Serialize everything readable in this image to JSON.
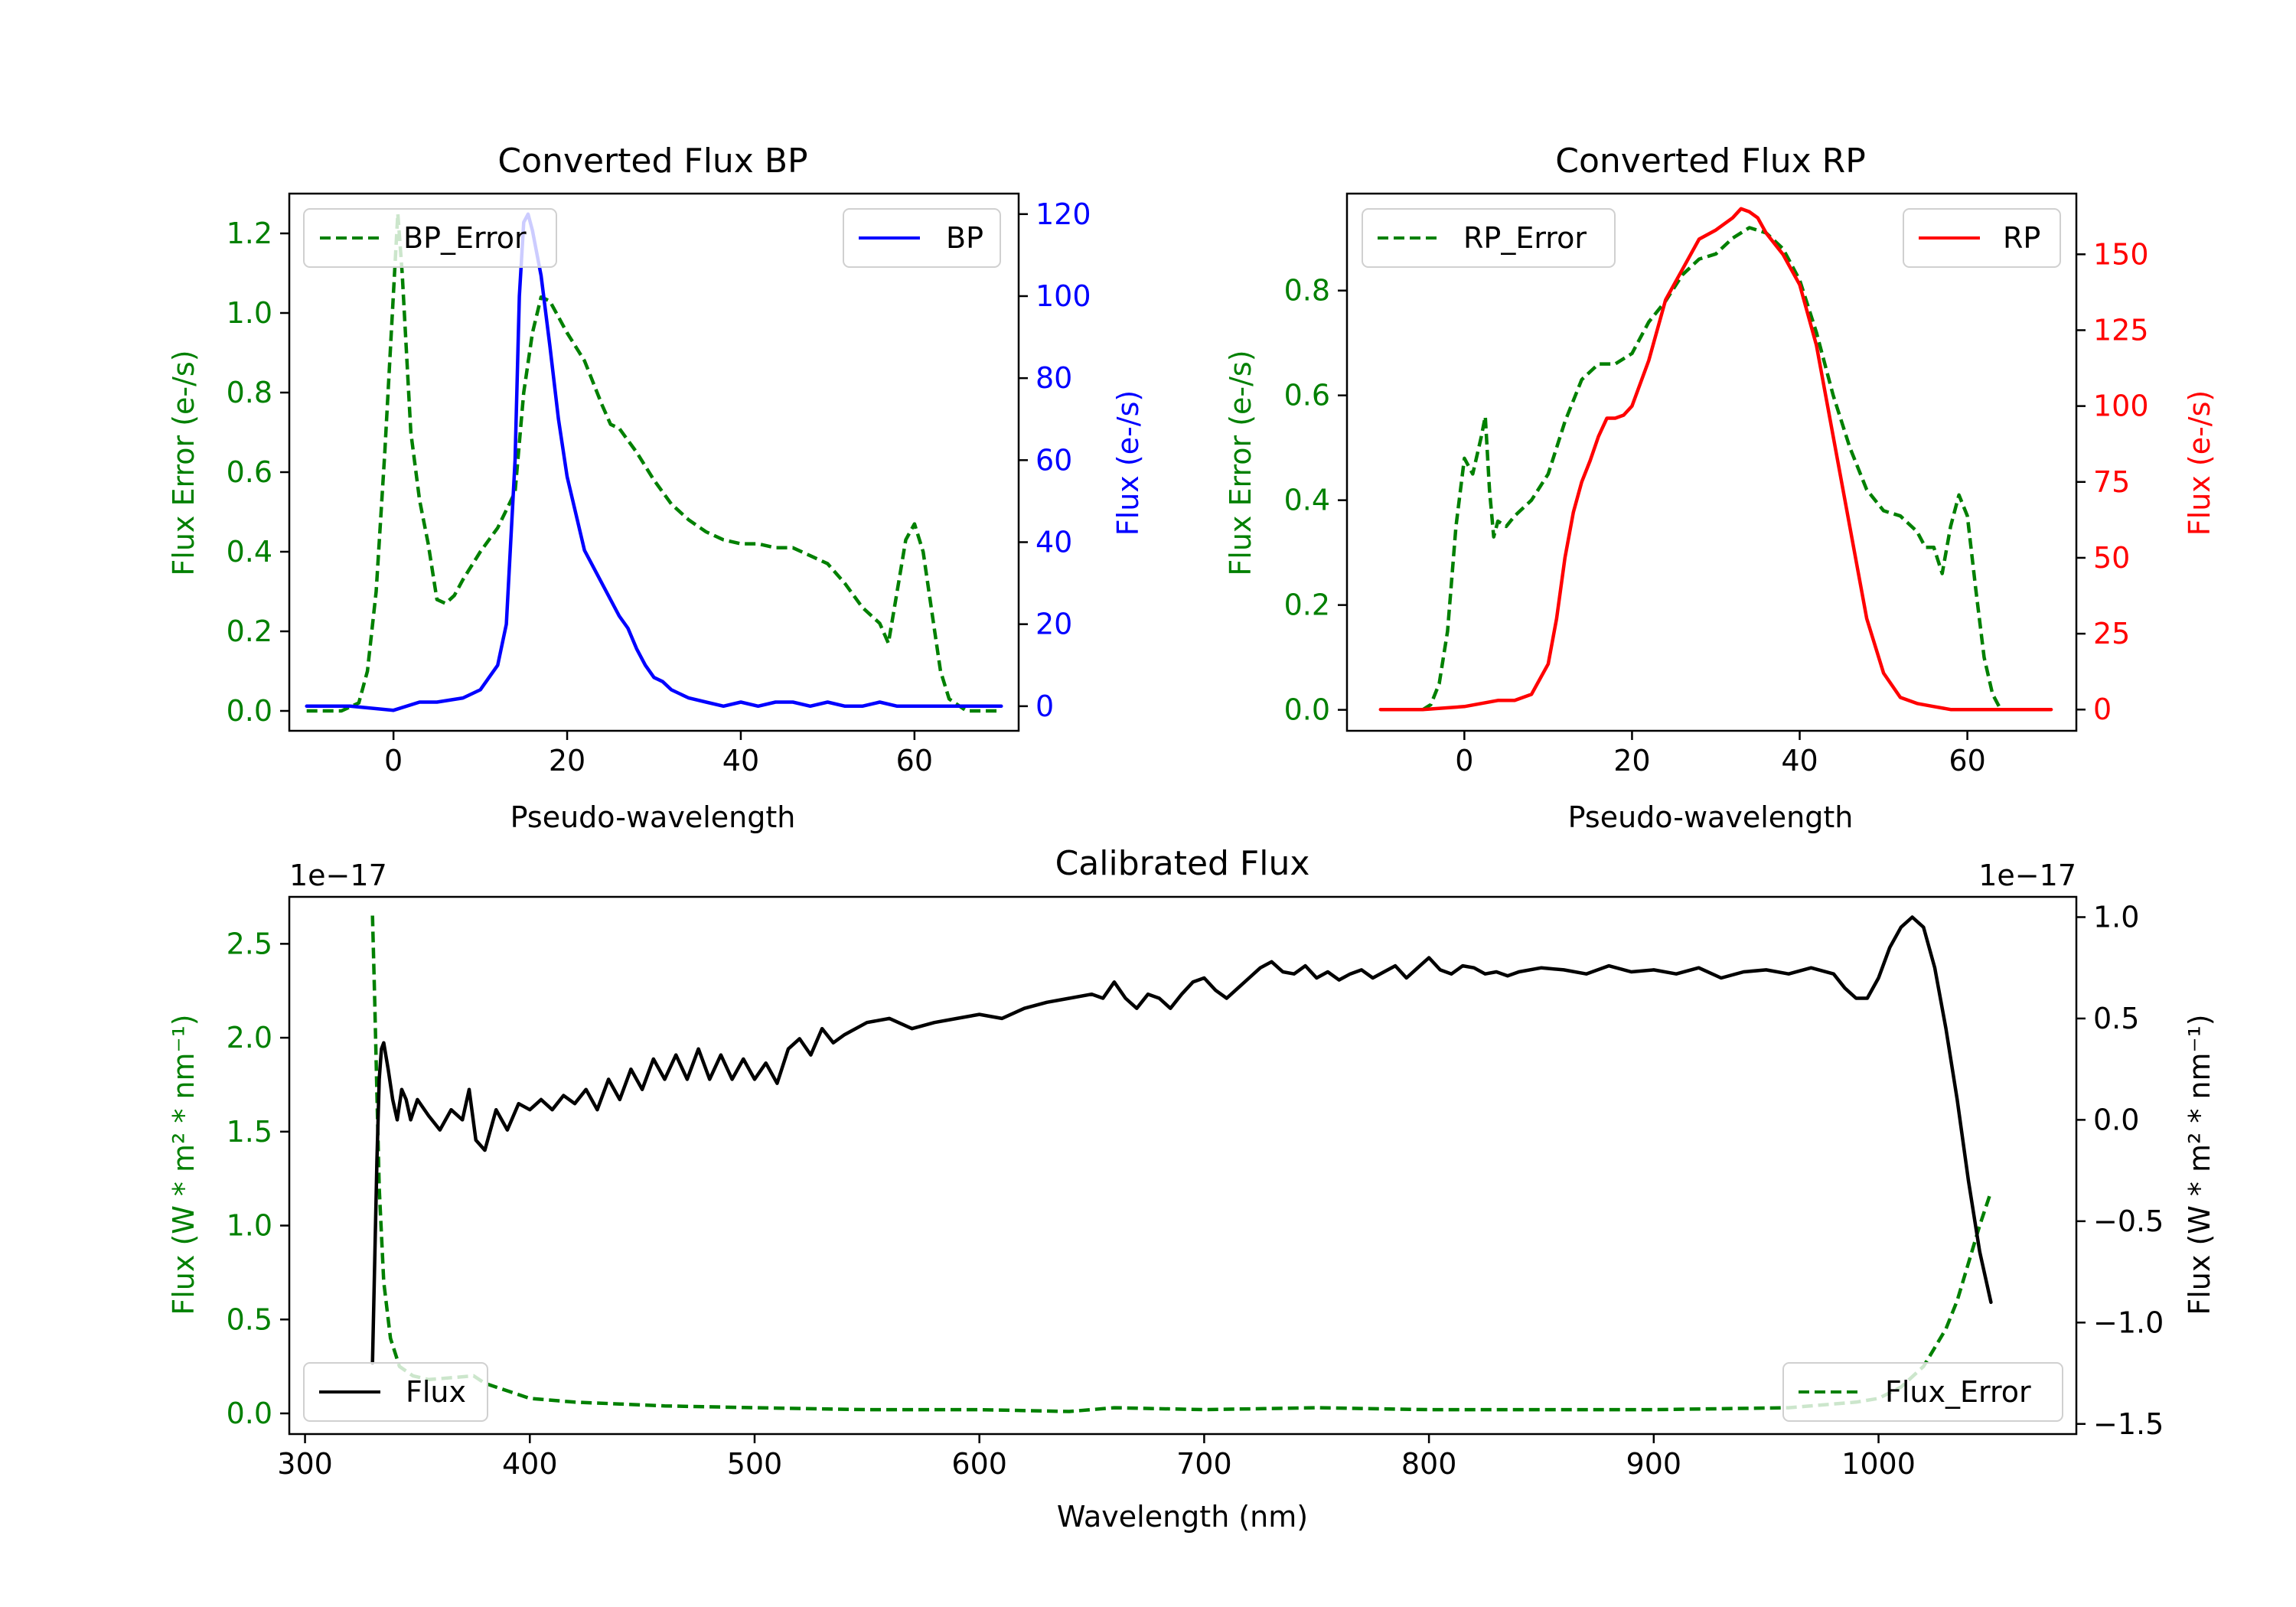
{
  "colors": {
    "error": "#008000",
    "bp": "#0000ff",
    "rp": "#ff0000",
    "flux": "#000000",
    "axis": "#000000"
  },
  "chart_data": [
    {
      "id": "bp",
      "type": "line",
      "title": "Converted Flux BP",
      "xlabel": "Pseudo-wavelength",
      "ylabel_left": "Flux Error (e-/s)",
      "ylabel_right": "Flux (e-/s)",
      "xlim": [
        -12,
        72
      ],
      "ylim_left": [
        -0.05,
        1.3
      ],
      "ylim_right": [
        -6,
        125
      ],
      "xticks": [
        0,
        20,
        40,
        60
      ],
      "yticks_left": [
        0.0,
        0.2,
        0.4,
        0.6,
        0.8,
        1.0,
        1.2
      ],
      "yticks_right": [
        0,
        20,
        40,
        60,
        80,
        100,
        120
      ],
      "legend_left": "BP_Error",
      "legend_right": "BP",
      "series": [
        {
          "name": "BP_Error",
          "axis": "left",
          "style": "dashed",
          "color": "#008000",
          "x": [
            -10,
            -6,
            -4,
            -3,
            -2,
            -1,
            0,
            0.5,
            1,
            2,
            3,
            4,
            5,
            6,
            7,
            8,
            10,
            12,
            14,
            15,
            16,
            17,
            18,
            20,
            22,
            24,
            25,
            26,
            28,
            30,
            32,
            34,
            36,
            38,
            40,
            42,
            44,
            46,
            48,
            50,
            52,
            54,
            56,
            57,
            58,
            59,
            60,
            61,
            62,
            63,
            64,
            66,
            70
          ],
          "y": [
            0.0,
            0.0,
            0.02,
            0.1,
            0.3,
            0.65,
            1.05,
            1.25,
            1.1,
            0.7,
            0.53,
            0.42,
            0.28,
            0.27,
            0.29,
            0.33,
            0.4,
            0.46,
            0.55,
            0.8,
            0.95,
            1.04,
            1.03,
            0.95,
            0.88,
            0.77,
            0.72,
            0.71,
            0.65,
            0.58,
            0.52,
            0.48,
            0.45,
            0.43,
            0.42,
            0.42,
            0.41,
            0.41,
            0.39,
            0.37,
            0.32,
            0.26,
            0.22,
            0.17,
            0.3,
            0.43,
            0.47,
            0.4,
            0.25,
            0.1,
            0.03,
            0.0,
            0.0
          ]
        },
        {
          "name": "BP",
          "axis": "right",
          "style": "solid",
          "color": "#0000ff",
          "x": [
            -10,
            -5,
            0,
            3,
            5,
            8,
            10,
            12,
            13,
            14,
            14.5,
            15,
            15.5,
            16,
            17,
            18,
            19,
            20,
            22,
            24,
            26,
            27,
            28,
            29,
            30,
            31,
            32,
            34,
            36,
            38,
            40,
            42,
            44,
            46,
            48,
            50,
            52,
            54,
            56,
            58,
            60,
            62,
            64,
            66,
            70
          ],
          "y": [
            0,
            0,
            -1,
            1,
            1,
            2,
            4,
            10,
            20,
            60,
            100,
            118,
            120,
            116,
            105,
            88,
            70,
            56,
            38,
            30,
            22,
            19,
            14,
            10,
            7,
            6,
            4,
            2,
            1,
            0,
            1,
            0,
            1,
            1,
            0,
            1,
            0,
            0,
            1,
            0,
            0,
            0,
            0,
            0,
            0
          ]
        }
      ]
    },
    {
      "id": "rp",
      "type": "line",
      "title": "Converted Flux RP",
      "xlabel": "Pseudo-wavelength",
      "ylabel_left": "Flux Error (e-/s)",
      "ylabel_right": "Flux (e-/s)",
      "xlim": [
        -14,
        73
      ],
      "ylim_left": [
        -0.04,
        0.985
      ],
      "ylim_right": [
        -7,
        170
      ],
      "xticks": [
        0,
        20,
        40,
        60
      ],
      "yticks_left": [
        0.0,
        0.2,
        0.4,
        0.6,
        0.8
      ],
      "yticks_right": [
        0,
        25,
        50,
        75,
        100,
        125,
        150
      ],
      "legend_left": "RP_Error",
      "legend_right": "RP",
      "series": [
        {
          "name": "RP_Error",
          "axis": "left",
          "style": "dashed",
          "color": "#008000",
          "x": [
            -5,
            -4,
            -3,
            -2,
            -1,
            0,
            1,
            2,
            2.5,
            3,
            3.5,
            4,
            5,
            6,
            8,
            10,
            12,
            14,
            16,
            18,
            20,
            22,
            24,
            26,
            28,
            30,
            32,
            34,
            36,
            38,
            40,
            42,
            44,
            46,
            48,
            50,
            52,
            54,
            55,
            56,
            57,
            58,
            59,
            60,
            61,
            62,
            63,
            64
          ],
          "y": [
            0.0,
            0.01,
            0.05,
            0.15,
            0.35,
            0.48,
            0.45,
            0.52,
            0.56,
            0.42,
            0.33,
            0.36,
            0.35,
            0.37,
            0.4,
            0.45,
            0.55,
            0.63,
            0.66,
            0.66,
            0.68,
            0.74,
            0.78,
            0.83,
            0.86,
            0.87,
            0.9,
            0.92,
            0.91,
            0.88,
            0.82,
            0.72,
            0.6,
            0.5,
            0.42,
            0.38,
            0.37,
            0.34,
            0.31,
            0.31,
            0.26,
            0.35,
            0.41,
            0.37,
            0.23,
            0.1,
            0.03,
            0.0
          ]
        },
        {
          "name": "RP",
          "axis": "right",
          "style": "solid",
          "color": "#ff0000",
          "x": [
            -10,
            -5,
            0,
            2,
            4,
            6,
            8,
            10,
            11,
            12,
            13,
            14,
            15,
            16,
            17,
            18,
            19,
            20,
            22,
            24,
            26,
            28,
            30,
            32,
            33,
            34,
            35,
            36,
            38,
            40,
            42,
            44,
            46,
            48,
            50,
            52,
            54,
            56,
            58,
            60,
            62,
            64,
            66,
            70
          ],
          "y": [
            0,
            0,
            1,
            2,
            3,
            3,
            5,
            15,
            30,
            50,
            65,
            75,
            82,
            90,
            96,
            96,
            97,
            100,
            115,
            135,
            145,
            155,
            158,
            162,
            165,
            164,
            162,
            157,
            150,
            140,
            120,
            90,
            60,
            30,
            12,
            4,
            2,
            1,
            0,
            0,
            0,
            0,
            0,
            0
          ]
        }
      ]
    },
    {
      "id": "calibrated",
      "type": "line",
      "title": "Calibrated Flux",
      "xlabel": "Wavelength (nm)",
      "ylabel_left": "Flux (W * m² * nm⁻¹)",
      "ylabel_right": "Flux (W * m² * nm⁻¹)",
      "offset_left": "1e−17",
      "offset_right": "1e−17",
      "xlim": [
        293,
        1088
      ],
      "ylim_left": [
        -0.11,
        2.75
      ],
      "ylim_right": [
        -1.55,
        1.1
      ],
      "xticks": [
        300,
        400,
        500,
        600,
        700,
        800,
        900,
        1000
      ],
      "yticks_left": [
        0.0,
        0.5,
        1.0,
        1.5,
        2.0,
        2.5
      ],
      "yticks_right": [
        -1.5,
        -1.0,
        -0.5,
        0.0,
        0.5,
        1.0
      ],
      "ytick_labels_right": [
        "−1.5",
        "−1.0",
        "−0.5",
        "0.0",
        "0.5",
        "1.0"
      ],
      "legend_left": "Flux",
      "legend_right": "Flux_Error",
      "series": [
        {
          "name": "Flux_Error",
          "axis": "left",
          "style": "dashed",
          "color": "#008000",
          "x": [
            330,
            331,
            332,
            333,
            335,
            338,
            342,
            348,
            355,
            365,
            375,
            380,
            385,
            390,
            400,
            420,
            440,
            460,
            500,
            550,
            600,
            640,
            660,
            700,
            750,
            800,
            850,
            900,
            960,
            990,
            1000,
            1010,
            1020,
            1025,
            1030,
            1035,
            1040,
            1045,
            1050
          ],
          "y": [
            2.65,
            2.2,
            1.7,
            1.2,
            0.7,
            0.4,
            0.25,
            0.2,
            0.18,
            0.19,
            0.2,
            0.16,
            0.14,
            0.12,
            0.08,
            0.06,
            0.05,
            0.04,
            0.03,
            0.02,
            0.02,
            0.01,
            0.03,
            0.02,
            0.03,
            0.02,
            0.02,
            0.02,
            0.03,
            0.06,
            0.08,
            0.14,
            0.25,
            0.35,
            0.45,
            0.6,
            0.8,
            1.0,
            1.18
          ]
        },
        {
          "name": "Flux",
          "axis": "right",
          "style": "solid",
          "color": "#000000",
          "x": [
            330,
            331,
            332,
            333,
            334,
            335,
            337,
            339,
            341,
            343,
            345,
            347,
            350,
            355,
            360,
            365,
            370,
            373,
            376,
            380,
            385,
            390,
            395,
            400,
            405,
            410,
            415,
            420,
            425,
            430,
            435,
            440,
            445,
            450,
            455,
            460,
            465,
            470,
            475,
            480,
            485,
            490,
            495,
            500,
            505,
            510,
            515,
            520,
            525,
            530,
            535,
            540,
            550,
            560,
            570,
            580,
            590,
            600,
            610,
            620,
            630,
            640,
            650,
            655,
            660,
            665,
            670,
            675,
            680,
            685,
            690,
            695,
            700,
            705,
            710,
            715,
            720,
            725,
            730,
            735,
            740,
            745,
            750,
            755,
            760,
            765,
            770,
            775,
            780,
            785,
            790,
            795,
            800,
            805,
            810,
            815,
            820,
            825,
            830,
            835,
            840,
            850,
            860,
            870,
            880,
            890,
            900,
            910,
            920,
            930,
            940,
            950,
            960,
            970,
            980,
            985,
            990,
            995,
            1000,
            1005,
            1010,
            1015,
            1020,
            1025,
            1030,
            1035,
            1040,
            1045,
            1050
          ],
          "y": [
            -1.2,
            -0.7,
            -0.2,
            0.2,
            0.35,
            0.38,
            0.25,
            0.1,
            0.0,
            0.15,
            0.1,
            0.0,
            0.1,
            0.02,
            -0.05,
            0.05,
            0.0,
            0.15,
            -0.1,
            -0.15,
            0.05,
            -0.05,
            0.08,
            0.05,
            0.1,
            0.05,
            0.12,
            0.08,
            0.15,
            0.05,
            0.2,
            0.1,
            0.25,
            0.15,
            0.3,
            0.2,
            0.32,
            0.2,
            0.35,
            0.2,
            0.32,
            0.2,
            0.3,
            0.2,
            0.28,
            0.18,
            0.35,
            0.4,
            0.32,
            0.45,
            0.38,
            0.42,
            0.48,
            0.5,
            0.45,
            0.48,
            0.5,
            0.52,
            0.5,
            0.55,
            0.58,
            0.6,
            0.62,
            0.6,
            0.68,
            0.6,
            0.55,
            0.62,
            0.6,
            0.55,
            0.62,
            0.68,
            0.7,
            0.64,
            0.6,
            0.65,
            0.7,
            0.75,
            0.78,
            0.73,
            0.72,
            0.76,
            0.7,
            0.73,
            0.69,
            0.72,
            0.74,
            0.7,
            0.73,
            0.76,
            0.7,
            0.75,
            0.8,
            0.74,
            0.72,
            0.76,
            0.75,
            0.72,
            0.73,
            0.71,
            0.73,
            0.75,
            0.74,
            0.72,
            0.76,
            0.73,
            0.74,
            0.72,
            0.75,
            0.7,
            0.73,
            0.74,
            0.72,
            0.75,
            0.72,
            0.65,
            0.6,
            0.6,
            0.7,
            0.85,
            0.95,
            1.0,
            0.95,
            0.75,
            0.45,
            0.1,
            -0.3,
            -0.65,
            -0.9
          ]
        }
      ]
    }
  ]
}
